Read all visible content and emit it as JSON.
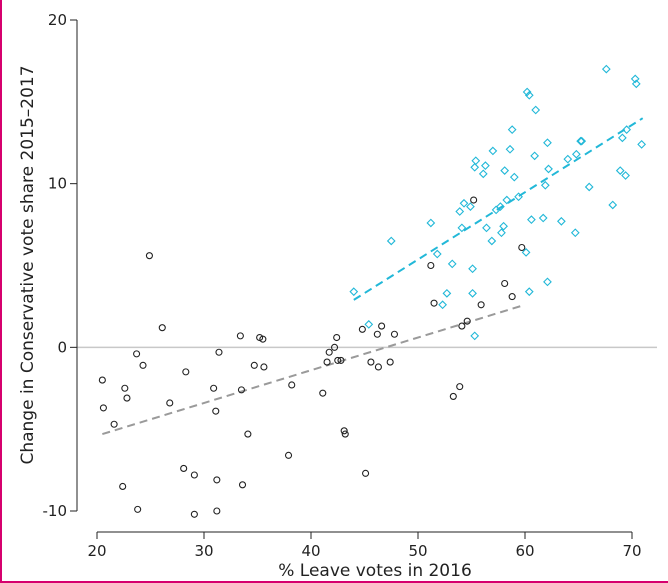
{
  "chart_data": {
    "type": "scatter",
    "xlabel": "% Leave votes in 2016",
    "ylabel": "Change in Conservative vote share 2015–2017",
    "xlim": [
      19,
      72
    ],
    "ylim": [
      -10.5,
      20
    ],
    "xticks": [
      20,
      30,
      40,
      50,
      60,
      70
    ],
    "yticks": [
      -10,
      0,
      10,
      20
    ],
    "tick_labels_x": [
      "20",
      "30",
      "40",
      "50",
      "60",
      "70"
    ],
    "tick_labels_y": [
      "-10",
      "0",
      "10",
      "20"
    ],
    "zero_line": 0,
    "grid": false,
    "colors": {
      "group_a": "#222222",
      "group_b": "#22b8d8",
      "trend_a": "#9a9a9a",
      "trend_b": "#22b8d8",
      "zero_line": "#c8c8c8"
    },
    "series": [
      {
        "marker": "circle",
        "color": "#222222",
        "points": [
          [
            20.5,
            -2.0
          ],
          [
            20.6,
            -3.7
          ],
          [
            21.6,
            -4.7
          ],
          [
            22.4,
            -8.5
          ],
          [
            22.6,
            -2.5
          ],
          [
            22.8,
            -3.1
          ],
          [
            23.7,
            -0.4
          ],
          [
            23.8,
            -9.9
          ],
          [
            24.3,
            -1.1
          ],
          [
            24.9,
            5.6
          ],
          [
            26.1,
            1.2
          ],
          [
            26.8,
            -3.4
          ],
          [
            28.1,
            -7.4
          ],
          [
            28.3,
            -1.5
          ],
          [
            29.1,
            -7.8
          ],
          [
            29.1,
            -10.2
          ],
          [
            30.9,
            -2.5
          ],
          [
            31.1,
            -3.9
          ],
          [
            31.2,
            -8.1
          ],
          [
            31.2,
            -10.0
          ],
          [
            31.4,
            -0.3
          ],
          [
            33.4,
            0.7
          ],
          [
            33.5,
            -2.6
          ],
          [
            33.6,
            -8.4
          ],
          [
            34.1,
            -5.3
          ],
          [
            34.7,
            -1.1
          ],
          [
            35.2,
            0.6
          ],
          [
            35.5,
            0.5
          ],
          [
            35.6,
            -1.2
          ],
          [
            37.9,
            -6.6
          ],
          [
            38.2,
            -2.3
          ],
          [
            41.1,
            -2.8
          ],
          [
            41.5,
            -0.9
          ],
          [
            41.7,
            -0.3
          ],
          [
            42.2,
            0.0
          ],
          [
            42.4,
            0.6
          ],
          [
            42.5,
            -0.8
          ],
          [
            42.8,
            -0.8
          ],
          [
            43.1,
            -5.1
          ],
          [
            43.2,
            -5.3
          ],
          [
            44.8,
            1.1
          ],
          [
            45.1,
            -7.7
          ],
          [
            45.6,
            -0.9
          ],
          [
            46.2,
            0.8
          ],
          [
            46.3,
            -1.2
          ],
          [
            46.6,
            1.3
          ],
          [
            47.4,
            -0.9
          ],
          [
            47.8,
            0.8
          ],
          [
            51.2,
            5.0
          ],
          [
            51.5,
            2.7
          ],
          [
            53.3,
            -3.0
          ],
          [
            53.9,
            -2.4
          ],
          [
            54.1,
            1.3
          ],
          [
            54.6,
            1.6
          ],
          [
            55.2,
            9.0
          ],
          [
            55.9,
            2.6
          ],
          [
            58.1,
            3.9
          ],
          [
            58.8,
            3.1
          ],
          [
            59.7,
            6.1
          ]
        ]
      },
      {
        "marker": "diamond",
        "color": "#22b8d8",
        "points": [
          [
            44.0,
            3.4
          ],
          [
            45.4,
            1.4
          ],
          [
            47.5,
            6.5
          ],
          [
            51.2,
            7.6
          ],
          [
            51.8,
            5.7
          ],
          [
            52.3,
            2.6
          ],
          [
            52.7,
            3.3
          ],
          [
            53.2,
            5.1
          ],
          [
            53.9,
            8.3
          ],
          [
            54.1,
            7.3
          ],
          [
            54.3,
            8.8
          ],
          [
            54.9,
            8.6
          ],
          [
            55.1,
            3.3
          ],
          [
            55.1,
            4.8
          ],
          [
            55.3,
            11.0
          ],
          [
            55.3,
            0.7
          ],
          [
            55.4,
            11.4
          ],
          [
            56.1,
            10.6
          ],
          [
            56.3,
            11.1
          ],
          [
            56.4,
            7.3
          ],
          [
            56.9,
            6.5
          ],
          [
            57.0,
            12.0
          ],
          [
            57.3,
            8.4
          ],
          [
            57.7,
            8.6
          ],
          [
            57.8,
            7.0
          ],
          [
            58.0,
            7.4
          ],
          [
            58.1,
            10.8
          ],
          [
            58.3,
            9.0
          ],
          [
            58.6,
            12.1
          ],
          [
            58.8,
            13.3
          ],
          [
            59.0,
            10.4
          ],
          [
            59.4,
            9.2
          ],
          [
            60.1,
            5.8
          ],
          [
            60.2,
            15.6
          ],
          [
            60.4,
            15.4
          ],
          [
            60.4,
            3.4
          ],
          [
            60.6,
            7.8
          ],
          [
            60.9,
            11.7
          ],
          [
            61.0,
            14.5
          ],
          [
            61.7,
            7.9
          ],
          [
            61.9,
            9.9
          ],
          [
            62.1,
            12.5
          ],
          [
            62.1,
            4.0
          ],
          [
            62.2,
            10.9
          ],
          [
            63.4,
            7.7
          ],
          [
            64.0,
            11.5
          ],
          [
            64.7,
            7.0
          ],
          [
            64.8,
            11.8
          ],
          [
            65.2,
            12.6
          ],
          [
            65.3,
            12.6
          ],
          [
            66.0,
            9.8
          ],
          [
            67.6,
            17.0
          ],
          [
            68.2,
            8.7
          ],
          [
            68.9,
            10.8
          ],
          [
            69.1,
            12.8
          ],
          [
            69.4,
            10.5
          ],
          [
            69.5,
            13.3
          ],
          [
            70.3,
            16.4
          ],
          [
            70.4,
            16.1
          ],
          [
            70.9,
            12.4
          ]
        ]
      }
    ],
    "trendlines": [
      {
        "color": "#9a9a9a",
        "x": [
          20.5,
          60.0
        ],
        "y": [
          -5.3,
          2.6
        ]
      },
      {
        "color": "#22b8d8",
        "x": [
          44.0,
          71.0
        ],
        "y": [
          2.9,
          14.0
        ]
      }
    ]
  }
}
